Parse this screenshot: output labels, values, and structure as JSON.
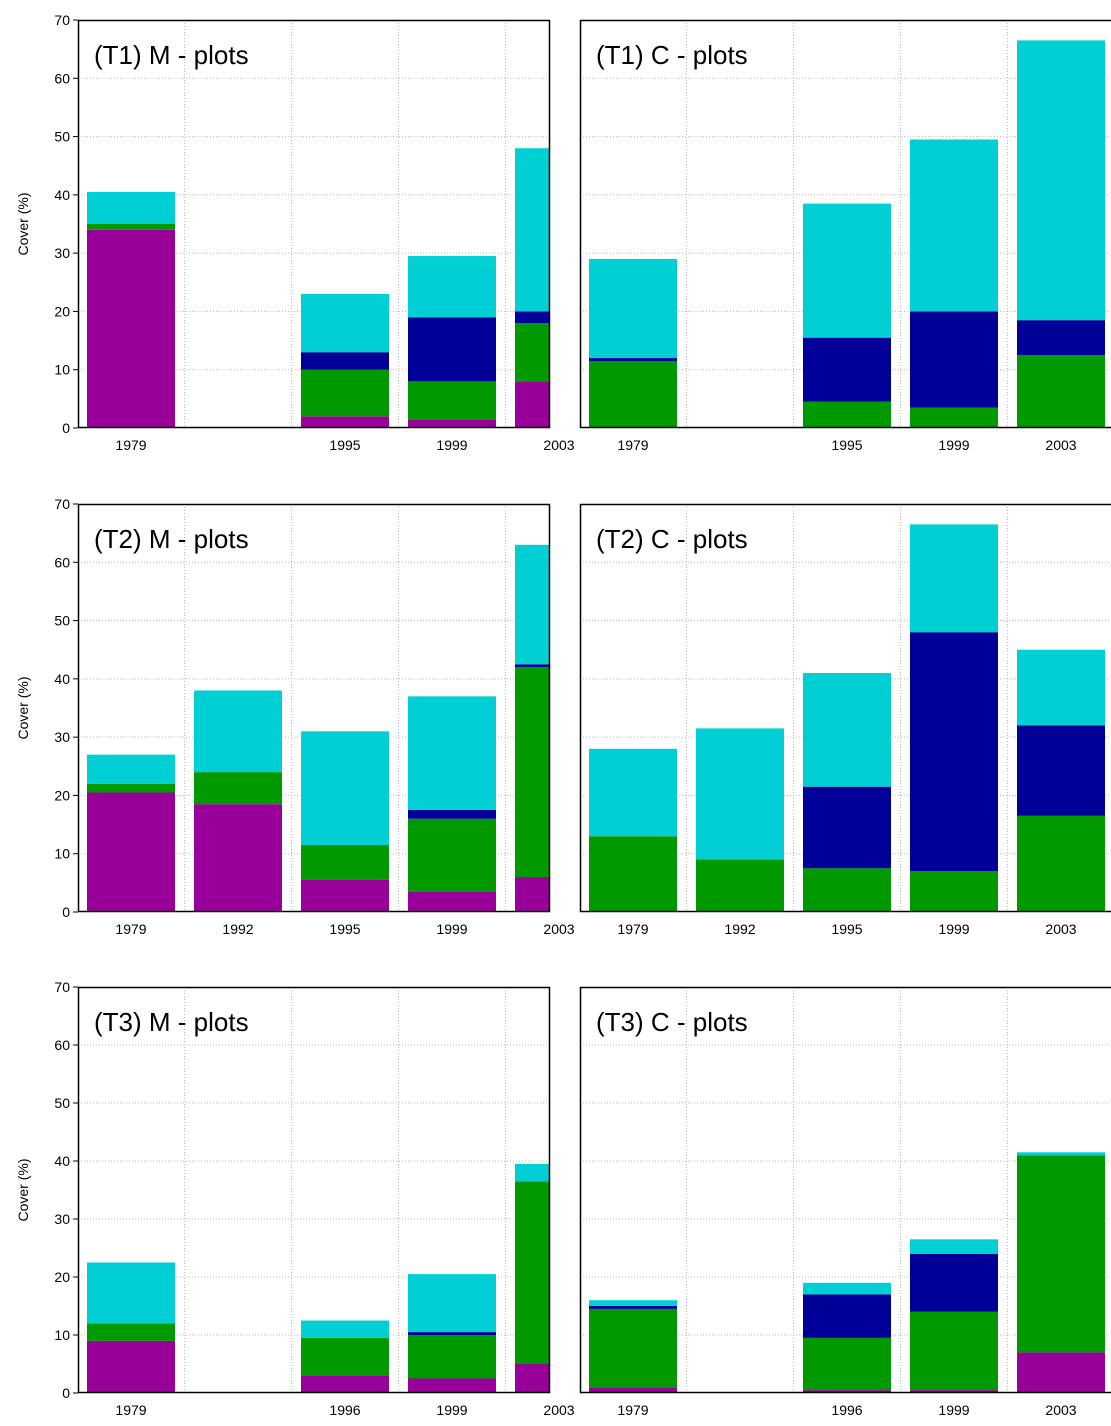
{
  "colors": {
    "purple": "#990099",
    "green": "#009900",
    "navy": "#000099",
    "cyan": "#00d0d4",
    "grid": "#b8b8b8",
    "frame": "#000000"
  },
  "chart_data": [
    {
      "type": "bar",
      "stacked": true,
      "title": "(T1)  M - plots",
      "ylabel": "Cover (%)",
      "ylim": [
        0,
        70
      ],
      "yticks": [
        "0",
        "10",
        "20",
        "30",
        "40",
        "50",
        "60",
        "70"
      ],
      "grid": true,
      "slots": [
        "1979",
        "",
        "1995",
        "1999",
        "2003"
      ],
      "series": [
        {
          "color": "purple",
          "values": [
            34,
            null,
            2,
            1.5,
            8
          ]
        },
        {
          "color": "green",
          "values": [
            1,
            null,
            8,
            6.5,
            10
          ]
        },
        {
          "color": "navy",
          "values": [
            0,
            null,
            3,
            11,
            2
          ]
        },
        {
          "color": "cyan",
          "values": [
            5.5,
            null,
            10,
            10.5,
            28
          ]
        }
      ]
    },
    {
      "type": "bar",
      "stacked": true,
      "title": "(T1)  C - plots",
      "ylabel": "",
      "ylim": [
        0,
        70
      ],
      "yticks": [],
      "grid": true,
      "slots": [
        "1979",
        "",
        "1995",
        "1999",
        "2003"
      ],
      "series": [
        {
          "color": "purple",
          "values": [
            0,
            null,
            0,
            0,
            0
          ]
        },
        {
          "color": "green",
          "values": [
            11.5,
            null,
            4.5,
            3.5,
            12.5
          ]
        },
        {
          "color": "navy",
          "values": [
            0.5,
            null,
            11,
            16.5,
            6
          ]
        },
        {
          "color": "cyan",
          "values": [
            17,
            null,
            23,
            29.5,
            48
          ]
        }
      ]
    },
    {
      "type": "bar",
      "stacked": true,
      "title": "(T2)  M - plots",
      "ylabel": "Cover (%)",
      "ylim": [
        0,
        70
      ],
      "yticks": [
        "0",
        "10",
        "20",
        "30",
        "40",
        "50",
        "60",
        "70"
      ],
      "grid": true,
      "slots": [
        "1979",
        "1992",
        "1995",
        "1999",
        "2003"
      ],
      "series": [
        {
          "color": "purple",
          "values": [
            20.5,
            18.5,
            5.5,
            3.5,
            6
          ]
        },
        {
          "color": "green",
          "values": [
            1.5,
            5.5,
            6,
            12.5,
            36
          ]
        },
        {
          "color": "navy",
          "values": [
            0,
            0,
            0,
            1.5,
            0.5
          ]
        },
        {
          "color": "cyan",
          "values": [
            5,
            14,
            19.5,
            19.5,
            20.5
          ]
        }
      ]
    },
    {
      "type": "bar",
      "stacked": true,
      "title": "(T2)  C - plots",
      "ylabel": "",
      "ylim": [
        0,
        70
      ],
      "yticks": [],
      "grid": true,
      "slots": [
        "1979",
        "1992",
        "1995",
        "1999",
        "2003"
      ],
      "series": [
        {
          "color": "purple",
          "values": [
            0,
            0,
            0,
            0,
            0
          ]
        },
        {
          "color": "green",
          "values": [
            13,
            9,
            7.5,
            7,
            16.5
          ]
        },
        {
          "color": "navy",
          "values": [
            0,
            0,
            14,
            41,
            15.5
          ]
        },
        {
          "color": "cyan",
          "values": [
            15,
            22.5,
            19.5,
            18.5,
            13
          ]
        }
      ]
    },
    {
      "type": "bar",
      "stacked": true,
      "title": "(T3)  M - plots",
      "ylabel": "Cover (%)",
      "ylim": [
        0,
        70
      ],
      "yticks": [
        "0",
        "10",
        "20",
        "30",
        "40",
        "50",
        "60",
        "70"
      ],
      "grid": true,
      "slots": [
        "1979",
        "",
        "1996",
        "1999",
        "2003"
      ],
      "series": [
        {
          "color": "purple",
          "values": [
            9,
            null,
            3,
            2.5,
            5
          ]
        },
        {
          "color": "green",
          "values": [
            3,
            null,
            6.5,
            7.5,
            31.5
          ]
        },
        {
          "color": "navy",
          "values": [
            0,
            null,
            0,
            0.5,
            0
          ]
        },
        {
          "color": "cyan",
          "values": [
            10.5,
            null,
            3,
            10,
            3
          ]
        }
      ]
    },
    {
      "type": "bar",
      "stacked": true,
      "title": "(T3)  C - plots",
      "ylabel": "",
      "ylim": [
        0,
        70
      ],
      "yticks": [],
      "grid": true,
      "slots": [
        "1979",
        "",
        "1996",
        "1999",
        "2003"
      ],
      "series": [
        {
          "color": "purple",
          "values": [
            1,
            null,
            0.5,
            0.5,
            7
          ]
        },
        {
          "color": "green",
          "values": [
            13.5,
            null,
            9,
            13.5,
            34
          ]
        },
        {
          "color": "navy",
          "values": [
            0.5,
            null,
            7.5,
            10,
            0
          ]
        },
        {
          "color": "cyan",
          "values": [
            1,
            null,
            2,
            2.5,
            0.5
          ]
        }
      ]
    }
  ]
}
